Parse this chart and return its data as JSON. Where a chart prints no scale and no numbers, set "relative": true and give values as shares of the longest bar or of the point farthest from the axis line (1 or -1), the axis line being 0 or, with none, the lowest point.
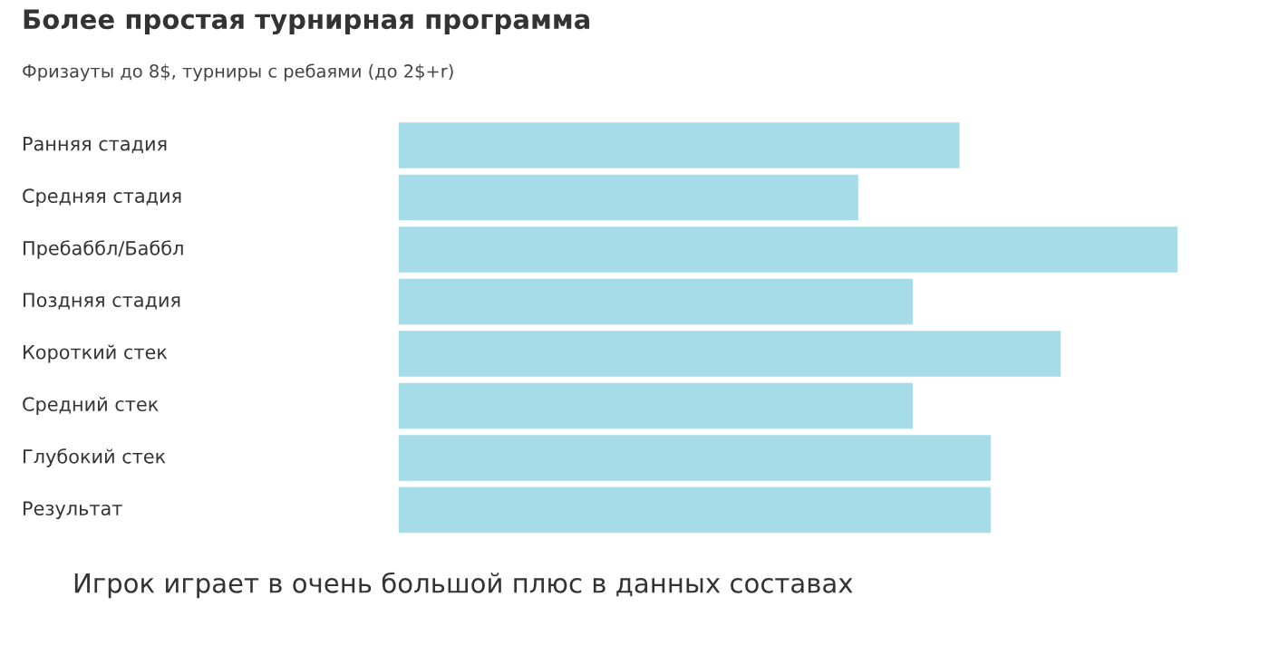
{
  "chart_data": {
    "type": "bar",
    "orientation": "horizontal",
    "relative": true,
    "title": "Более простая турнирная программа",
    "subtitle": "Фризауты до 8$, турниры с ребаями (до 2$+r)",
    "categories": [
      "Ранняя стадия",
      "Средняя стадия",
      "Пребаббл/Баббл",
      "Поздняя стадия",
      "Короткий стек",
      "Средний стек",
      "Глубокий стек",
      "Результат"
    ],
    "values": [
      0.72,
      0.59,
      1,
      0.66,
      0.85,
      0.66,
      0.76,
      0.76
    ],
    "color": "#a6dbe8",
    "annotations": [
      "Игрок играет в очень большой плюс в данных составах"
    ]
  }
}
